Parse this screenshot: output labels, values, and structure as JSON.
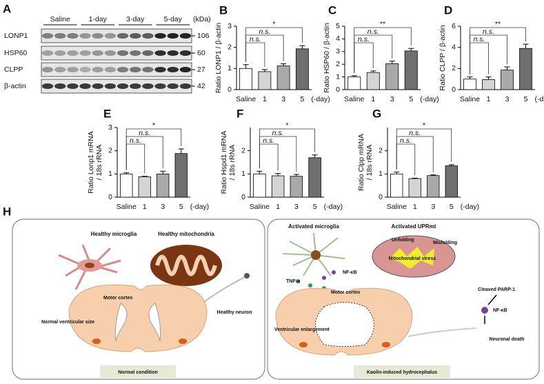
{
  "panel_a": {
    "label": "A",
    "groups": [
      "Saline",
      "1-day",
      "3-day",
      "5-day"
    ],
    "unit": "(kDa)",
    "rows": [
      {
        "name": "LONP1",
        "kda": 106
      },
      {
        "name": "HSP60",
        "kda": 60
      },
      {
        "name": "CLPP",
        "kda": 27
      },
      {
        "name": "β-actin",
        "kda": 42
      }
    ]
  },
  "chart_data": [
    {
      "type": "bar",
      "label": "B",
      "ylabel": [
        "Ratio LONP1 / β-actin"
      ],
      "categories": [
        "Saline",
        "1",
        "3",
        "5"
      ],
      "x_unit": "(-day)",
      "values": [
        1.0,
        0.85,
        1.12,
        1.93
      ],
      "errors": [
        0.18,
        0.1,
        0.1,
        0.15
      ],
      "colors": [
        "#ffffff",
        "#d4d4d4",
        "#a9a9a9",
        "#6f6f6f"
      ],
      "ylim": [
        0,
        3
      ],
      "yticks": [
        0,
        1,
        2,
        3
      ],
      "significance": [
        "n.s.",
        "n.s.",
        "*"
      ]
    },
    {
      "type": "bar",
      "label": "C",
      "ylabel": [
        "Ratio HSP60 / β-actin"
      ],
      "categories": [
        "Saline",
        "1",
        "3",
        "5"
      ],
      "x_unit": "(-day)",
      "values": [
        1.0,
        1.35,
        2.05,
        3.05
      ],
      "errors": [
        0.1,
        0.12,
        0.2,
        0.2
      ],
      "colors": [
        "#ffffff",
        "#d4d4d4",
        "#a9a9a9",
        "#6f6f6f"
      ],
      "ylim": [
        0,
        5
      ],
      "yticks": [
        0,
        1,
        2,
        3,
        4,
        5
      ],
      "significance": [
        "n.s.",
        "n.s.",
        "**"
      ]
    },
    {
      "type": "bar",
      "label": "D",
      "ylabel": [
        "Ratio CLPP / β-actin"
      ],
      "categories": [
        "Saline",
        "1",
        "3",
        "5"
      ],
      "x_unit": "(-day)",
      "values": [
        1.0,
        0.95,
        1.85,
        3.9
      ],
      "errors": [
        0.2,
        0.25,
        0.3,
        0.4
      ],
      "colors": [
        "#ffffff",
        "#d4d4d4",
        "#a9a9a9",
        "#6f6f6f"
      ],
      "ylim": [
        0,
        6
      ],
      "yticks": [
        0,
        2,
        4,
        6
      ],
      "significance": [
        "n.s.",
        "n.s.",
        "**"
      ]
    },
    {
      "type": "bar",
      "label": "E",
      "ylabel": [
        "Ratio Lonp1 mRNA",
        "/ 18s rRNA"
      ],
      "categories": [
        "Saline",
        "1",
        "3",
        "5"
      ],
      "x_unit": "(-day)",
      "values": [
        1.0,
        0.88,
        1.0,
        1.88
      ],
      "errors": [
        0.05,
        0.02,
        0.12,
        0.2
      ],
      "colors": [
        "#ffffff",
        "#d4d4d4",
        "#a9a9a9",
        "#6f6f6f"
      ],
      "ylim": [
        0,
        3
      ],
      "yticks": [
        0,
        1,
        2,
        3
      ],
      "significance": [
        "n.s.",
        "n.s.",
        "*"
      ]
    },
    {
      "type": "bar",
      "label": "F",
      "ylabel": [
        "Ratio Hspd1 mRNA",
        "/ 18s rRNA"
      ],
      "categories": [
        "Saline",
        "1",
        "3",
        "5"
      ],
      "x_unit": "(-day)",
      "values": [
        1.0,
        0.92,
        0.9,
        1.7
      ],
      "errors": [
        0.12,
        0.1,
        0.08,
        0.12
      ],
      "colors": [
        "#ffffff",
        "#d4d4d4",
        "#a9a9a9",
        "#6f6f6f"
      ],
      "ylim": [
        0,
        3
      ],
      "yticks": [
        0,
        1,
        2
      ],
      "significance": [
        "n.s.",
        "n.s.",
        "*"
      ]
    },
    {
      "type": "bar",
      "label": "G",
      "ylabel": [
        "Ratio Clpp mRNA",
        "/ 18s rRNA"
      ],
      "categories": [
        "Saline",
        "1",
        "3",
        "5"
      ],
      "x_unit": "(-day)",
      "values": [
        1.0,
        0.8,
        0.93,
        1.35
      ],
      "errors": [
        0.08,
        0.02,
        0.03,
        0.05
      ],
      "colors": [
        "#ffffff",
        "#d4d4d4",
        "#a9a9a9",
        "#6f6f6f"
      ],
      "ylim": [
        0,
        3
      ],
      "yticks": [
        0,
        1,
        2
      ],
      "significance": [
        "n.s.",
        "n.s.",
        "*"
      ]
    }
  ],
  "panel_h": {
    "label": "H",
    "left": {
      "microglia": "Healthy microglia",
      "mitochondria": "Healthy mitochondria",
      "cortex": "Motor cortex",
      "ventricle": "Normal ventricular size",
      "neuron": "Healthy neuron",
      "caption": "Normal condition"
    },
    "right": {
      "microglia": "Activated microglia",
      "uprmt": "Activated UPRmt",
      "unfolding": "Unfolding",
      "misfolding": "Misfolding",
      "stress": "Mitochondrial stress",
      "nfkb": "NF-κB",
      "tnf": "TNF-α",
      "cortex": "Motor cortex",
      "parp": "Cleaved PARP-1",
      "nfkb2": "NF-κB",
      "ventricle": "Ventricular enlargement",
      "death": "Neuronal death",
      "caption": "Kaolin-induced hydrocephalus"
    }
  }
}
